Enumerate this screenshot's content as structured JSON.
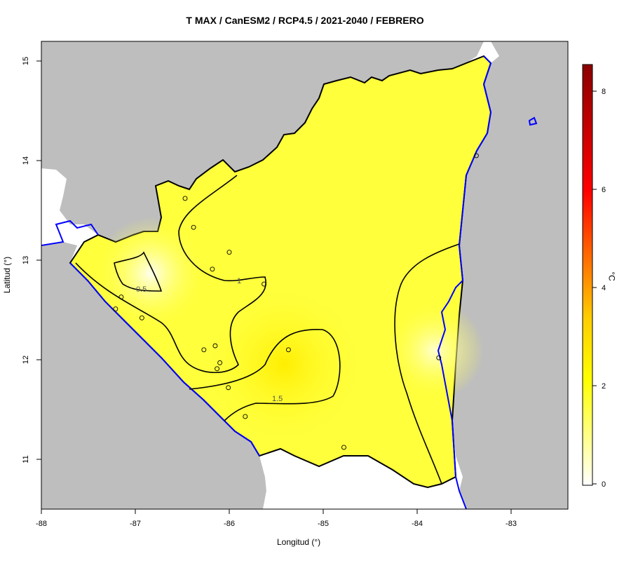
{
  "title": "T MAX / CanESM2 / RCP4.5 / 2021-2040 / FEBRERO",
  "x_axis": {
    "label": "Longitud (°)",
    "ticks": [
      "-88",
      "-87",
      "-86",
      "-85",
      "-84",
      "-83"
    ]
  },
  "y_axis": {
    "label": "Latitud (°)",
    "ticks": [
      "11",
      "12",
      "13",
      "14",
      "15"
    ]
  },
  "colorbar": {
    "unit": "°C",
    "ticks": [
      "0",
      "2",
      "4",
      "6",
      "8"
    ],
    "colors": [
      "#ffffff",
      "#ffff00",
      "#ff0000",
      "#8b0000"
    ]
  },
  "contour_labels": [
    "0.5",
    "1",
    "1.5"
  ],
  "colors": {
    "land_outside": "#bebebe",
    "coast": "#0000ff",
    "border": "#000000",
    "field": "#ffff3c"
  },
  "stations": [
    [
      -86.47,
      13.62
    ],
    [
      -86.38,
      13.33
    ],
    [
      -86.0,
      13.08
    ],
    [
      -86.18,
      12.91
    ],
    [
      -85.63,
      12.76
    ],
    [
      -87.15,
      12.63
    ],
    [
      -87.21,
      12.51
    ],
    [
      -86.93,
      12.42
    ],
    [
      -86.27,
      12.1
    ],
    [
      -86.15,
      12.14
    ],
    [
      -86.1,
      11.97
    ],
    [
      -86.13,
      11.91
    ],
    [
      -86.01,
      11.72
    ],
    [
      -85.37,
      12.1
    ],
    [
      -85.83,
      11.43
    ],
    [
      -84.78,
      11.12
    ],
    [
      -83.77,
      12.02
    ],
    [
      -83.37,
      14.05
    ]
  ]
}
